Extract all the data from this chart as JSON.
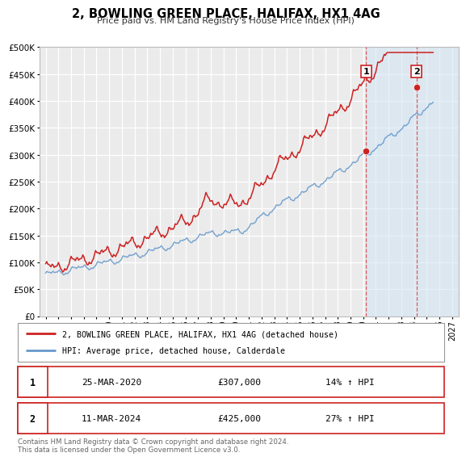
{
  "title": "2, BOWLING GREEN PLACE, HALIFAX, HX1 4AG",
  "subtitle": "Price paid vs. HM Land Registry's House Price Index (HPI)",
  "bg_color": "#ffffff",
  "plot_bg_color": "#ebebeb",
  "grid_color": "#ffffff",
  "hpi_color": "#6699cc",
  "price_color": "#cc2222",
  "vline_color": "#dd4444",
  "shade_color": "#d0e4f5",
  "ylim": [
    0,
    500000
  ],
  "xlim_start": 1994.5,
  "xlim_end": 2027.5,
  "event1_x": 2020.22,
  "event1_y": 307000,
  "event2_x": 2024.19,
  "event2_y": 425000,
  "event1_date": "25-MAR-2020",
  "event1_price": "£307,000",
  "event1_pct": "14% ↑ HPI",
  "event2_date": "11-MAR-2024",
  "event2_price": "£425,000",
  "event2_pct": "27% ↑ HPI",
  "legend_line1": "2, BOWLING GREEN PLACE, HALIFAX, HX1 4AG (detached house)",
  "legend_line2": "HPI: Average price, detached house, Calderdale",
  "footer": "Contains HM Land Registry data © Crown copyright and database right 2024.\nThis data is licensed under the Open Government Licence v3.0."
}
